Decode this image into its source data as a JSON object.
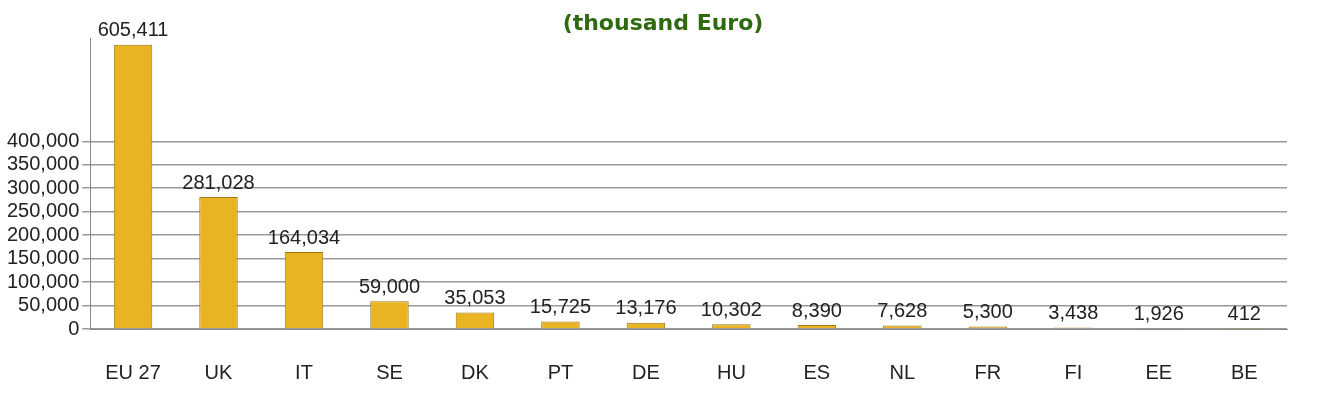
{
  "chart_data": {
    "type": "bar",
    "title": "(thousand Euro)",
    "categories": [
      "EU 27",
      "UK",
      "IT",
      "SE",
      "DK",
      "PT",
      "DE",
      "HU",
      "ES",
      "NL",
      "FR",
      "FI",
      "EE",
      "BE"
    ],
    "values": [
      605411,
      281028,
      164034,
      59000,
      35053,
      15725,
      13176,
      10302,
      8390,
      7628,
      5300,
      3438,
      1926,
      412
    ],
    "value_labels": [
      "605,411",
      "281,028",
      "164,034",
      "59,000",
      "35,053",
      "15,725",
      "13,176",
      "10,302",
      "8,390",
      "7,628",
      "5,300",
      "3,438",
      "1,926",
      "412"
    ],
    "color": "#e8b423",
    "ylim": [
      0,
      620000
    ],
    "yticks": [
      0,
      {
        "value": 50000,
        "label": "50,000"
      },
      {
        "value": 100000,
        "label": "100,000"
      },
      {
        "value": 150000,
        "label": "150,000"
      },
      {
        "value": 200000,
        "label": "200,000"
      },
      {
        "value": 250000,
        "label": "250,000"
      },
      {
        "value": 300000,
        "label": "300,000"
      },
      {
        "value": 350000,
        "label": "350,000"
      },
      {
        "value": 400000,
        "label": "400,000"
      }
    ],
    "grid": "y"
  }
}
